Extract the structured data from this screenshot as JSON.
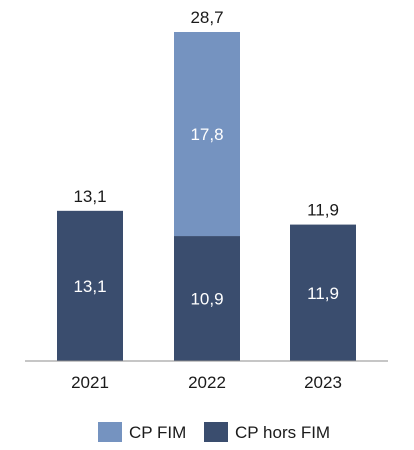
{
  "chart_data": {
    "type": "bar",
    "stacked": true,
    "categories": [
      "2021",
      "2022",
      "2023"
    ],
    "series": [
      {
        "name": "CP hors FIM",
        "values": [
          13.1,
          10.9,
          11.9
        ],
        "labels": [
          "13,1",
          "10,9",
          "11,9"
        ],
        "color": "#3a4d6e"
      },
      {
        "name": "CP FIM",
        "values": [
          0,
          17.8,
          0
        ],
        "labels": [
          "",
          "17,8",
          ""
        ],
        "color": "#7593c0"
      }
    ],
    "totals": [
      13.1,
      28.7,
      11.9
    ],
    "total_labels": [
      "13,1",
      "28,7",
      "11,9"
    ],
    "ylim": [
      0,
      28.7
    ],
    "grid": false,
    "legend_position": "bottom"
  }
}
